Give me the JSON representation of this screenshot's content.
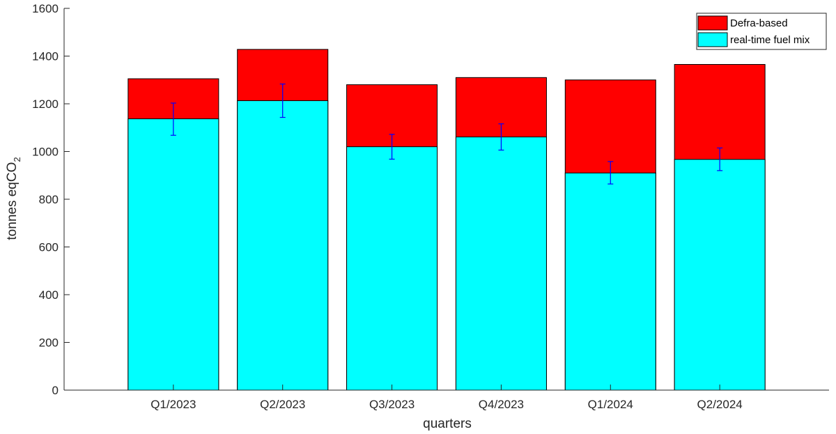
{
  "chart_data": {
    "type": "bar",
    "stacked": false,
    "categories": [
      "Q1/2023",
      "Q2/2023",
      "Q3/2023",
      "Q4/2023",
      "Q1/2024",
      "Q2/2024"
    ],
    "series": [
      {
        "name": "Defra-based",
        "color": "#ff0000",
        "values": [
          1305,
          1428,
          1280,
          1310,
          1300,
          1365
        ]
      },
      {
        "name": "real-time fuel mix",
        "color": "#00ffff",
        "values": [
          1137,
          1213,
          1020,
          1061,
          910,
          967
        ],
        "error_low": [
          1068,
          1143,
          968,
          1006,
          864,
          920
        ],
        "error_high": [
          1203,
          1283,
          1072,
          1116,
          958,
          1015
        ],
        "error_color": "#0000ff"
      }
    ],
    "xlabel": "quarters",
    "ylabel_main": "tonnes eqCO",
    "ylabel_sub": "2",
    "ylim": [
      0,
      1600
    ],
    "yticks": [
      "0",
      "200",
      "400",
      "600",
      "800",
      "1000",
      "1200",
      "1400",
      "1600"
    ],
    "grid": false,
    "legend_position": "top-right"
  }
}
